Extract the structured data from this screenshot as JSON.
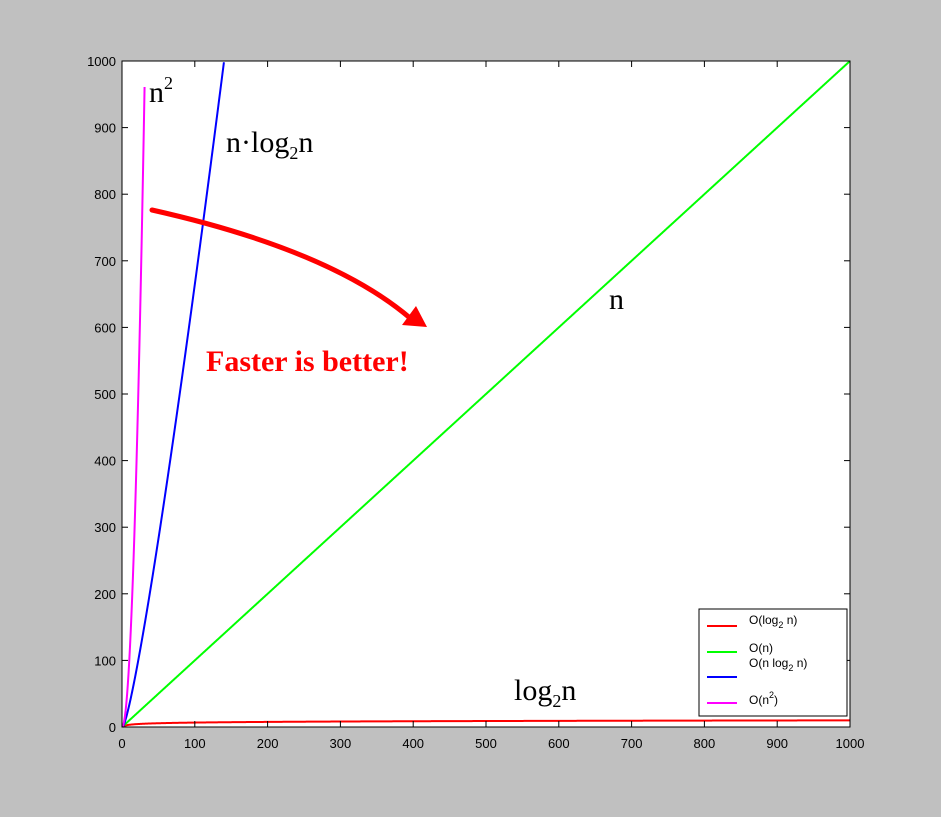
{
  "chart_data": {
    "type": "line",
    "xlim": [
      0,
      1000
    ],
    "ylim": [
      0,
      1000
    ],
    "x_ticks": [
      0,
      100,
      200,
      300,
      400,
      500,
      600,
      700,
      800,
      900,
      1000
    ],
    "y_ticks": [
      0,
      100,
      200,
      300,
      400,
      500,
      600,
      700,
      800,
      900,
      1000
    ],
    "grid": false,
    "legend_position": "bottom-right",
    "series": [
      {
        "name": "O(log2 n)",
        "legend_main": "O(log",
        "legend_sub": "2",
        "legend_tail": " n)",
        "function": "log2(n)",
        "color": "#ff0000"
      },
      {
        "name": "O(n)",
        "legend_main": "O(n)",
        "legend_sub": "",
        "legend_tail": "",
        "function": "n",
        "color": "#00ff00"
      },
      {
        "name": "O(n log2 n)",
        "legend_main": "O(n log",
        "legend_sub": "2",
        "legend_tail": " n)",
        "function": "n*log2(n)",
        "color": "#0000ff"
      },
      {
        "name": "O(n^2)",
        "legend_main": "O(n",
        "legend_sup": "2",
        "legend_tail": ")",
        "function": "n^2",
        "color": "#ff00ff"
      }
    ],
    "annotations": {
      "n_squared": {
        "base": "n",
        "sup": "2"
      },
      "nlogn": {
        "pre": "n·log",
        "sub": "2",
        "post": "n"
      },
      "linear": "n",
      "log": {
        "pre": "log",
        "sub": "2",
        "post": "n"
      },
      "faster": "Faster is better!"
    }
  }
}
